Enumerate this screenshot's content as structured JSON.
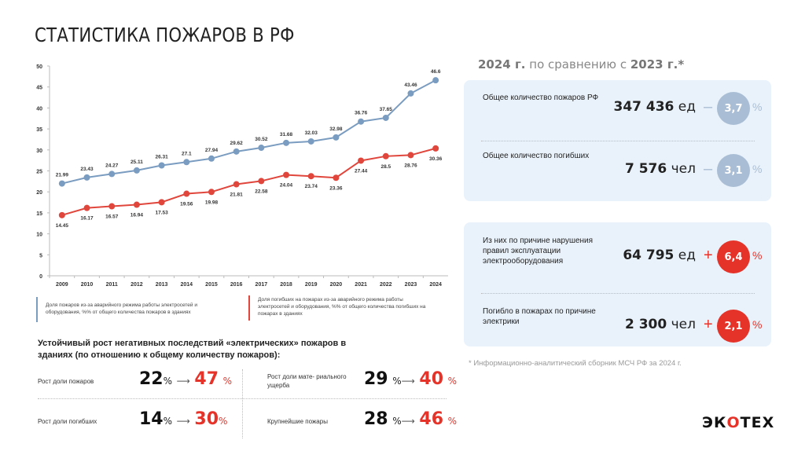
{
  "title": "СТАТИСТИКА ПОЖАРОВ В РФ",
  "chart_data": {
    "type": "line",
    "x": [
      "2009",
      "2010",
      "2011",
      "2012",
      "2013",
      "2014",
      "2015",
      "2016",
      "2017",
      "2018",
      "2019",
      "2020",
      "2021",
      "2022",
      "2023",
      "2024"
    ],
    "ylim": [
      0,
      50
    ],
    "yticks": [
      0,
      5,
      10,
      15,
      20,
      25,
      30,
      35,
      40,
      45,
      50
    ],
    "grid": false,
    "series": [
      {
        "name": "Доля пожаров из-за аварийного режима работы электросетей и оборудования, %% от общего количества пожаров в зданиях",
        "color": "#7a9cc0",
        "labels_position": "above",
        "values": [
          21.99,
          23.43,
          24.27,
          25.11,
          26.31,
          27.1,
          27.94,
          29.62,
          30.52,
          31.68,
          32.03,
          32.98,
          36.76,
          37.65,
          43.46,
          46.6
        ]
      },
      {
        "name": "Доля погибших на пожарах из-за аварийного режима работы электросетей и оборудования, %% от общего количества погибших на пожарах в зданиях",
        "color": "#e0463c",
        "labels_position": "below",
        "values": [
          14.45,
          16.17,
          16.57,
          16.94,
          17.53,
          19.56,
          19.98,
          21.81,
          22.58,
          24.04,
          23.74,
          23.36,
          27.44,
          28.5,
          28.76,
          30.36
        ]
      }
    ]
  },
  "bottom": {
    "heading": "Устойчивый рост негативных последствий «электрических» пожаров в зданиях (по отношению к общему количеству пожаров):",
    "items": [
      {
        "label": "Рост доли пожаров",
        "from": "22",
        "to": "47",
        "unit": "%",
        "arrow": "⟶"
      },
      {
        "label": "Рост доли мате- риального ущерба",
        "from": "29",
        "to": "40",
        "unit": "%",
        "arrow": "⟶"
      },
      {
        "label": "Рост доли погибших",
        "from": "14",
        "to": "30",
        "unit": "%",
        "arrow": "⟶"
      },
      {
        "label": "Крупнейшие пожары",
        "from": "28",
        "to": "46",
        "unit": "%",
        "arrow": "⟶"
      }
    ]
  },
  "comparison": {
    "heading_a": "2024 г.",
    "heading_b": " по сравнению с ",
    "heading_c": "2023 г.*",
    "cards": [
      {
        "label": "Общее количество пожаров РФ",
        "value": "347 436",
        "unit": " ед",
        "sign": "–",
        "change": "3,7",
        "pct": "%",
        "dir": "down"
      },
      {
        "label": "Общее количество погибших",
        "value": "7 576",
        "unit": " чел",
        "sign": "–",
        "change": "3,1",
        "pct": "%",
        "dir": "down"
      },
      {
        "label": "Из них по причине нарушения правил эксплуатации электрооборудования",
        "value": "64 795",
        "unit": " ед",
        "sign": "+",
        "change": "6,4",
        "pct": "%",
        "dir": "up"
      },
      {
        "label": "Погибло в пожарах по причине электрики",
        "value": "2 300",
        "unit": " чел",
        "sign": "+",
        "change": "2,1",
        "pct": "%",
        "dir": "up"
      }
    ],
    "source": "* Информационно-аналитический сборник МСЧ РФ за 2024 г."
  },
  "logo": {
    "a": "ЭК",
    "b": "О",
    "c": "ТЕХ"
  },
  "colors": {
    "blue": "#7a9cc0",
    "red": "#e63329",
    "circle_grey": "#a9bdd4",
    "card_bg": "#e9f2fb"
  }
}
